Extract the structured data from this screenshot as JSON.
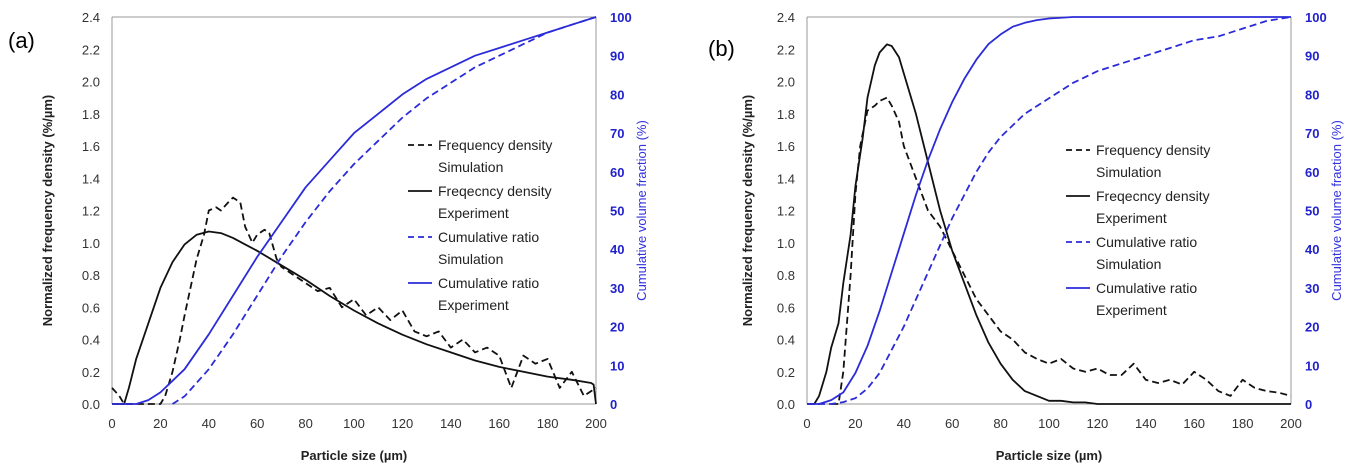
{
  "colors": {
    "frequency": "#111111",
    "cumulative": "#2b2bd9",
    "right_axis": "#2222cc"
  },
  "chart_data": [
    {
      "type": "line",
      "panel_label": "(a)",
      "xlabel": "Particle size (µm)",
      "ylabel": "Normalized frequency density  (%/µm)",
      "y2label": "Cumulative volume fraction (%)",
      "xlim": [
        0,
        200
      ],
      "ylim": [
        0,
        2.4
      ],
      "y2lim": [
        0,
        100
      ],
      "xticks": [
        "0",
        "20",
        "40",
        "60",
        "80",
        "100",
        "120",
        "140",
        "160",
        "180",
        "200"
      ],
      "yticks": [
        "0.0",
        "0.2",
        "0.4",
        "0.6",
        "0.8",
        "1.0",
        "1.2",
        "1.4",
        "1.6",
        "1.8",
        "2.0",
        "2.2",
        "2.4"
      ],
      "y2ticks": [
        "0",
        "10",
        "20",
        "30",
        "40",
        "50",
        "60",
        "70",
        "80",
        "90",
        "100"
      ],
      "grid": false,
      "legend_position": "center-right",
      "series": [
        {
          "name": "Frequency density Simulation",
          "axis": "left",
          "style": "dashed",
          "color": "#111111",
          "x": [
            0,
            3,
            5,
            10,
            15,
            20,
            22,
            25,
            28,
            30,
            35,
            38,
            40,
            43,
            45,
            48,
            50,
            53,
            55,
            58,
            60,
            63,
            65,
            68,
            70,
            75,
            80,
            85,
            90,
            95,
            100,
            105,
            110,
            115,
            120,
            125,
            130,
            135,
            140,
            145,
            150,
            155,
            160,
            165,
            170,
            175,
            180,
            185,
            190,
            195,
            200
          ],
          "y": [
            0.1,
            0.05,
            0,
            0,
            0,
            0,
            0.05,
            0.2,
            0.4,
            0.55,
            0.9,
            1.05,
            1.2,
            1.22,
            1.2,
            1.25,
            1.28,
            1.25,
            1.1,
            1.0,
            1.05,
            1.08,
            1.06,
            0.9,
            0.85,
            0.8,
            0.75,
            0.7,
            0.72,
            0.6,
            0.65,
            0.55,
            0.6,
            0.52,
            0.58,
            0.45,
            0.42,
            0.45,
            0.35,
            0.4,
            0.32,
            0.35,
            0.3,
            0.1,
            0.3,
            0.25,
            0.28,
            0.1,
            0.2,
            0.05,
            0.1
          ]
        },
        {
          "name": "Freqecncy density Experiment",
          "axis": "left",
          "style": "solid",
          "color": "#111111",
          "x": [
            0,
            5,
            7,
            10,
            15,
            20,
            25,
            30,
            35,
            40,
            45,
            50,
            55,
            60,
            70,
            80,
            90,
            100,
            110,
            120,
            130,
            140,
            150,
            160,
            170,
            180,
            190,
            198,
            199,
            200
          ],
          "y": [
            0,
            0,
            0.1,
            0.28,
            0.5,
            0.72,
            0.88,
            0.99,
            1.05,
            1.07,
            1.06,
            1.03,
            0.99,
            0.95,
            0.86,
            0.77,
            0.67,
            0.58,
            0.5,
            0.43,
            0.37,
            0.32,
            0.27,
            0.23,
            0.2,
            0.17,
            0.15,
            0.13,
            0.12,
            0
          ]
        },
        {
          "name": "Cumulative ratio Simulation",
          "axis": "right",
          "style": "dashed",
          "color": "#2b2bd9",
          "x": [
            25,
            30,
            40,
            50,
            60,
            70,
            80,
            90,
            100,
            110,
            120,
            130,
            140,
            150,
            160,
            170,
            180,
            190,
            200
          ],
          "y": [
            0,
            2,
            9,
            18,
            28,
            38,
            47,
            55,
            62,
            68,
            74,
            79,
            83,
            87,
            90,
            93,
            96,
            98,
            100
          ]
        },
        {
          "name": "Cumulative ratio Experiment",
          "axis": "right",
          "style": "solid",
          "color": "#2b2bd9",
          "x": [
            0,
            5,
            10,
            15,
            20,
            25,
            30,
            40,
            50,
            60,
            70,
            80,
            90,
            100,
            110,
            120,
            130,
            140,
            150,
            160,
            170,
            180,
            190,
            200
          ],
          "y": [
            0,
            0,
            0,
            1,
            3,
            6,
            9,
            18,
            28,
            38,
            47,
            56,
            63,
            70,
            75,
            80,
            84,
            87,
            90,
            92,
            94,
            96,
            98,
            100
          ]
        }
      ]
    },
    {
      "type": "line",
      "panel_label": "(b)",
      "xlabel": "Particle size (µm)",
      "ylabel": "Normalized frequency density  (%/µm)",
      "y2label": "Cumulative volume fraction (%)",
      "xlim": [
        0,
        200
      ],
      "ylim": [
        0,
        2.4
      ],
      "y2lim": [
        0,
        100
      ],
      "xticks": [
        "0",
        "20",
        "40",
        "60",
        "80",
        "100",
        "120",
        "140",
        "160",
        "180",
        "200"
      ],
      "yticks": [
        "0.0",
        "0.2",
        "0.4",
        "0.6",
        "0.8",
        "1.0",
        "1.2",
        "1.4",
        "1.6",
        "1.8",
        "2.0",
        "2.2",
        "2.4"
      ],
      "y2ticks": [
        "0",
        "10",
        "20",
        "30",
        "40",
        "50",
        "60",
        "70",
        "80",
        "90",
        "100"
      ],
      "grid": false,
      "legend_position": "center-right",
      "series": [
        {
          "name": "Frequency density Simulation",
          "axis": "left",
          "style": "dashed",
          "color": "#111111",
          "x": [
            10,
            13,
            15,
            18,
            20,
            22,
            25,
            28,
            30,
            33,
            35,
            38,
            40,
            45,
            50,
            55,
            60,
            65,
            70,
            75,
            80,
            85,
            90,
            95,
            100,
            105,
            110,
            115,
            120,
            125,
            130,
            135,
            140,
            145,
            150,
            155,
            160,
            165,
            170,
            175,
            180,
            185,
            190,
            195,
            200
          ],
          "y": [
            0,
            0,
            0.2,
            0.8,
            1.3,
            1.6,
            1.82,
            1.85,
            1.88,
            1.9,
            1.85,
            1.75,
            1.6,
            1.4,
            1.2,
            1.1,
            0.95,
            0.8,
            0.65,
            0.55,
            0.45,
            0.4,
            0.32,
            0.28,
            0.25,
            0.28,
            0.22,
            0.2,
            0.22,
            0.18,
            0.18,
            0.25,
            0.15,
            0.13,
            0.15,
            0.12,
            0.2,
            0.15,
            0.08,
            0.05,
            0.15,
            0.1,
            0.08,
            0.07,
            0.05
          ]
        },
        {
          "name": "Freqecncy density Experiment",
          "axis": "left",
          "style": "solid",
          "color": "#111111",
          "x": [
            0,
            3,
            5,
            8,
            10,
            13,
            15,
            18,
            20,
            23,
            25,
            28,
            30,
            33,
            35,
            38,
            40,
            45,
            50,
            55,
            60,
            65,
            70,
            75,
            80,
            85,
            90,
            95,
            100,
            105,
            110,
            115,
            120,
            130,
            140,
            150,
            160,
            170,
            180,
            190,
            200
          ],
          "y": [
            0,
            0,
            0.05,
            0.2,
            0.35,
            0.5,
            0.75,
            1.05,
            1.35,
            1.65,
            1.9,
            2.1,
            2.18,
            2.23,
            2.22,
            2.15,
            2.05,
            1.8,
            1.5,
            1.2,
            0.95,
            0.75,
            0.55,
            0.38,
            0.25,
            0.15,
            0.08,
            0.05,
            0.02,
            0.02,
            0.01,
            0.01,
            0,
            0,
            0,
            0,
            0,
            0,
            0,
            0,
            0
          ]
        },
        {
          "name": "Cumulative ratio Simulation",
          "axis": "right",
          "style": "dashed",
          "color": "#2b2bd9",
          "x": [
            0,
            10,
            15,
            20,
            25,
            30,
            35,
            40,
            45,
            50,
            55,
            60,
            65,
            70,
            75,
            80,
            90,
            100,
            110,
            120,
            130,
            140,
            150,
            160,
            170,
            180,
            190,
            200
          ],
          "y": [
            0,
            0,
            0.5,
            1.5,
            4,
            8,
            14,
            20,
            27,
            34,
            41,
            48,
            54,
            60,
            65,
            69,
            75,
            79,
            83,
            86,
            88,
            90,
            92,
            94,
            95,
            97,
            99,
            100
          ]
        },
        {
          "name": "Cumulative ratio Experiment",
          "axis": "right",
          "style": "solid",
          "color": "#2b2bd9",
          "x": [
            0,
            5,
            10,
            15,
            20,
            25,
            30,
            35,
            40,
            45,
            50,
            55,
            60,
            65,
            70,
            75,
            80,
            85,
            90,
            95,
            100,
            110,
            120,
            140,
            160,
            180,
            200
          ],
          "y": [
            0,
            0,
            1,
            3,
            8,
            15,
            24,
            34,
            44,
            54,
            63,
            71,
            78,
            84,
            89,
            93,
            95.5,
            97.5,
            98.5,
            99.2,
            99.6,
            100,
            100,
            100,
            100,
            100,
            100
          ]
        }
      ]
    }
  ]
}
